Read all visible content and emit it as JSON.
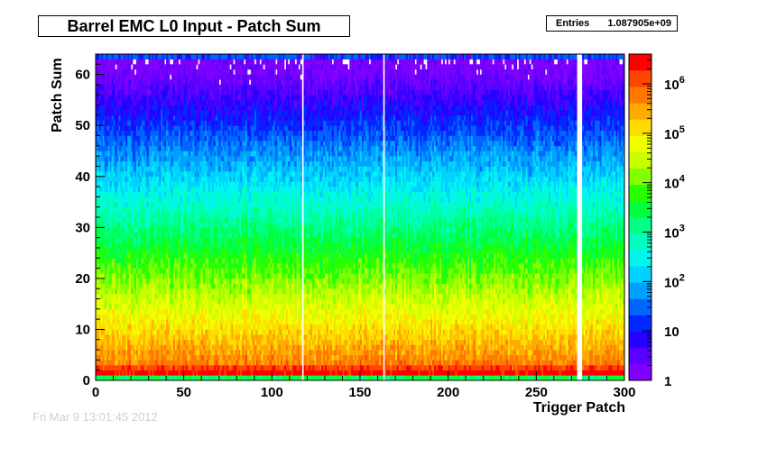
{
  "chart_data": {
    "type": "heatmap",
    "title": "Barrel EMC L0 Input - Patch Sum",
    "xlabel": "Trigger Patch",
    "ylabel": "Patch Sum",
    "xlim": [
      0,
      300
    ],
    "ylim": [
      0,
      64
    ],
    "x_ticks": [
      0,
      50,
      100,
      150,
      200,
      250,
      300
    ],
    "y_ticks": [
      0,
      10,
      20,
      30,
      40,
      50,
      60
    ],
    "z_scale": "log",
    "z_range": [
      1,
      4000000
    ],
    "colorbar_ticks": [
      {
        "value": 1,
        "label": "1"
      },
      {
        "value": 10,
        "label": "10"
      },
      {
        "value": 100,
        "base": "10",
        "exp": "2"
      },
      {
        "value": 1000,
        "base": "10",
        "exp": "3"
      },
      {
        "value": 10000,
        "base": "10",
        "exp": "4"
      },
      {
        "value": 100000,
        "base": "10",
        "exp": "5"
      },
      {
        "value": 1000000,
        "base": "10",
        "exp": "6"
      }
    ],
    "empty_columns": [
      117,
      163,
      273,
      274,
      275
    ],
    "description_of_density": {
      "sum_0": 2000,
      "sum_1": 3000000,
      "sum_2": 1500000,
      "decay_per_unit_sum": 0.8
    },
    "stats": {
      "label": "Entries",
      "value": "1.087905e+09"
    },
    "palette": [
      "#7f00ff",
      "#5a00ff",
      "#2800ff",
      "#0028ff",
      "#0064ff",
      "#00a0ff",
      "#00d2ff",
      "#00f5f0",
      "#00ffbe",
      "#00ff82",
      "#00ff3c",
      "#28ff00",
      "#82ff00",
      "#c8ff00",
      "#f0ff00",
      "#ffdc00",
      "#ffaa00",
      "#ff7800",
      "#ff4600",
      "#ff0000"
    ]
  },
  "footer": "Fri Mar  9 13:01:45 2012"
}
